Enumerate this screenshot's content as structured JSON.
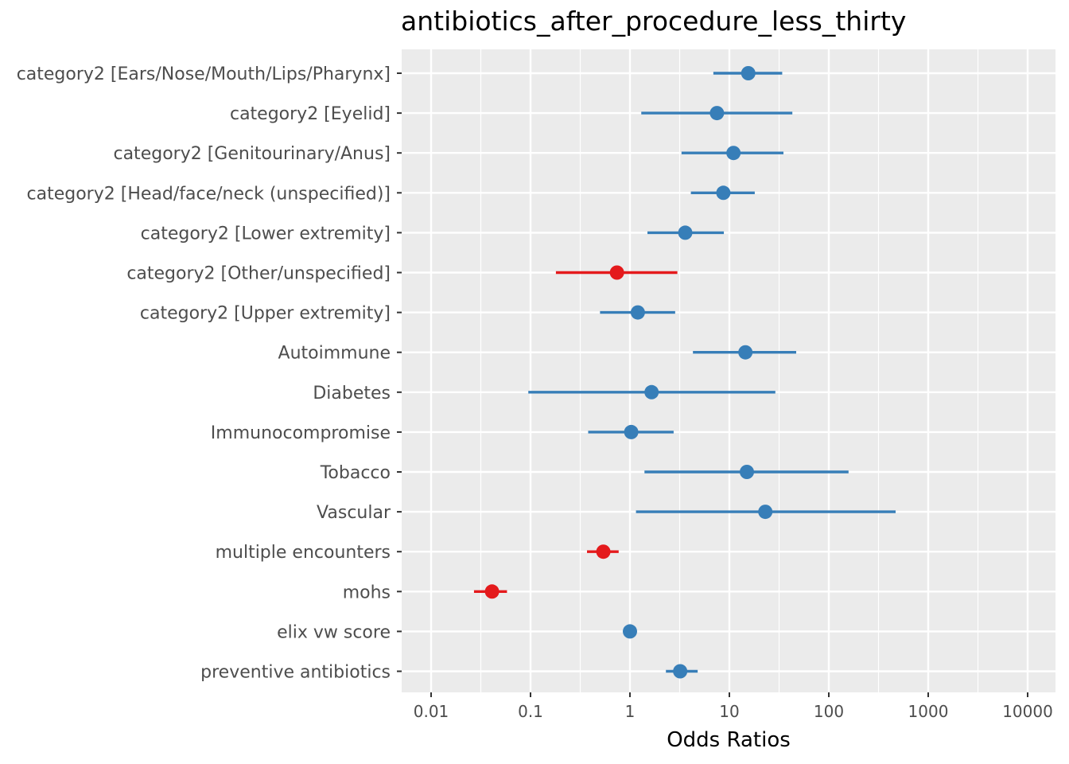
{
  "chart_data": {
    "type": "forest",
    "title": "antibiotics_after_procedure_less_thirty",
    "xlabel": "Odds Ratios",
    "ylabel": "",
    "x_scale": "log10",
    "xlim": [
      0.005,
      20000
    ],
    "x_ticks": [
      0.01,
      0.1,
      1,
      10,
      100,
      1000,
      10000
    ],
    "x_tick_labels": [
      "0.01",
      "0.1",
      "1",
      "10",
      "100",
      "1000",
      "10000"
    ],
    "grid": true,
    "legend": "none",
    "colors": {
      "positive": "#377EB8",
      "negative": "#E41A1C",
      "panel": "#EBEBEB",
      "grid": "#FFFFFF"
    },
    "terms": [
      {
        "label": "category2 [Ears/Nose/Mouth/Lips/Pharynx]",
        "estimate": 15.5,
        "lower": 6.9,
        "upper": 34,
        "direction": "positive"
      },
      {
        "label": "category2 [Eyelid]",
        "estimate": 7.5,
        "lower": 1.3,
        "upper": 43,
        "direction": "positive"
      },
      {
        "label": "category2 [Genitourinary/Anus]",
        "estimate": 11,
        "lower": 3.3,
        "upper": 35,
        "direction": "positive"
      },
      {
        "label": "category2 [Head/face/neck (unspecified)]",
        "estimate": 8.7,
        "lower": 4.1,
        "upper": 18,
        "direction": "positive"
      },
      {
        "label": "category2 [Lower extremity]",
        "estimate": 3.6,
        "lower": 1.5,
        "upper": 8.8,
        "direction": "positive"
      },
      {
        "label": "category2 [Other/unspecified]",
        "estimate": 0.74,
        "lower": 0.18,
        "upper": 3.0,
        "direction": "negative"
      },
      {
        "label": "category2 [Upper extremity]",
        "estimate": 1.2,
        "lower": 0.5,
        "upper": 2.85,
        "direction": "positive"
      },
      {
        "label": "Autoimmune",
        "estimate": 14.5,
        "lower": 4.3,
        "upper": 47,
        "direction": "positive"
      },
      {
        "label": "Diabetes",
        "estimate": 1.65,
        "lower": 0.095,
        "upper": 29,
        "direction": "positive"
      },
      {
        "label": "Immunocompromise",
        "estimate": 1.03,
        "lower": 0.38,
        "upper": 2.75,
        "direction": "positive"
      },
      {
        "label": "Tobacco",
        "estimate": 15,
        "lower": 1.4,
        "upper": 158,
        "direction": "positive"
      },
      {
        "label": "Vascular",
        "estimate": 23,
        "lower": 1.15,
        "upper": 470,
        "direction": "positive"
      },
      {
        "label": "multiple encounters",
        "estimate": 0.54,
        "lower": 0.37,
        "upper": 0.77,
        "direction": "negative"
      },
      {
        "label": "mohs",
        "estimate": 0.041,
        "lower": 0.027,
        "upper": 0.058,
        "direction": "negative"
      },
      {
        "label": "elix vw score",
        "estimate": 1.0,
        "lower": 0.98,
        "upper": 1.02,
        "direction": "positive"
      },
      {
        "label": "preventive antibiotics",
        "estimate": 3.2,
        "lower": 2.3,
        "upper": 4.8,
        "direction": "positive"
      }
    ]
  }
}
